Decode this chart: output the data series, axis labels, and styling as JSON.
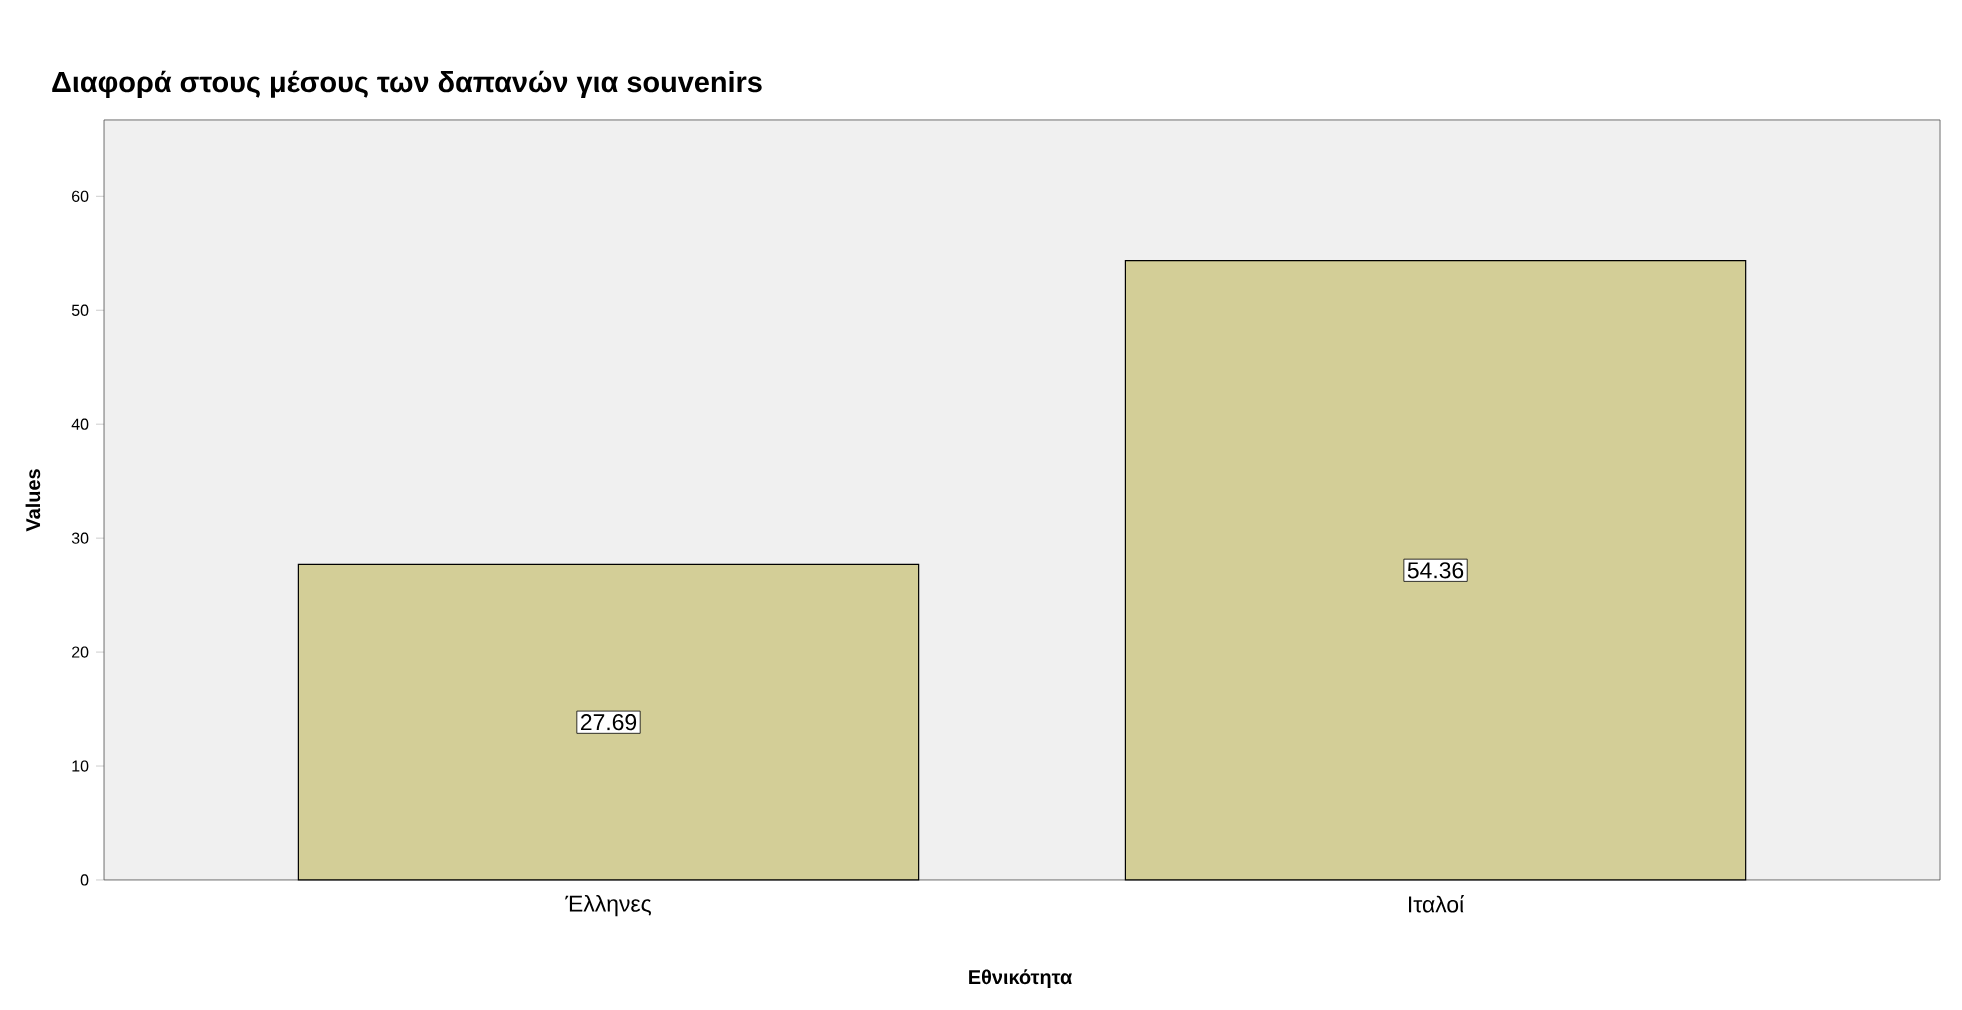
{
  "chart_data": {
    "type": "bar",
    "title": "Διαφορά στους μέσους των δαπανών για souvenirs",
    "xlabel": "Εθνικότητα",
    "ylabel": "Values",
    "categories": [
      "Έλληνες",
      "Ιταλοί"
    ],
    "values": [
      27.69,
      54.36
    ],
    "color": "#d3ce97",
    "ylim": [
      0,
      66.7
    ],
    "yticks": [
      0,
      10,
      20,
      30,
      40,
      50,
      60
    ],
    "data_labels": true
  }
}
